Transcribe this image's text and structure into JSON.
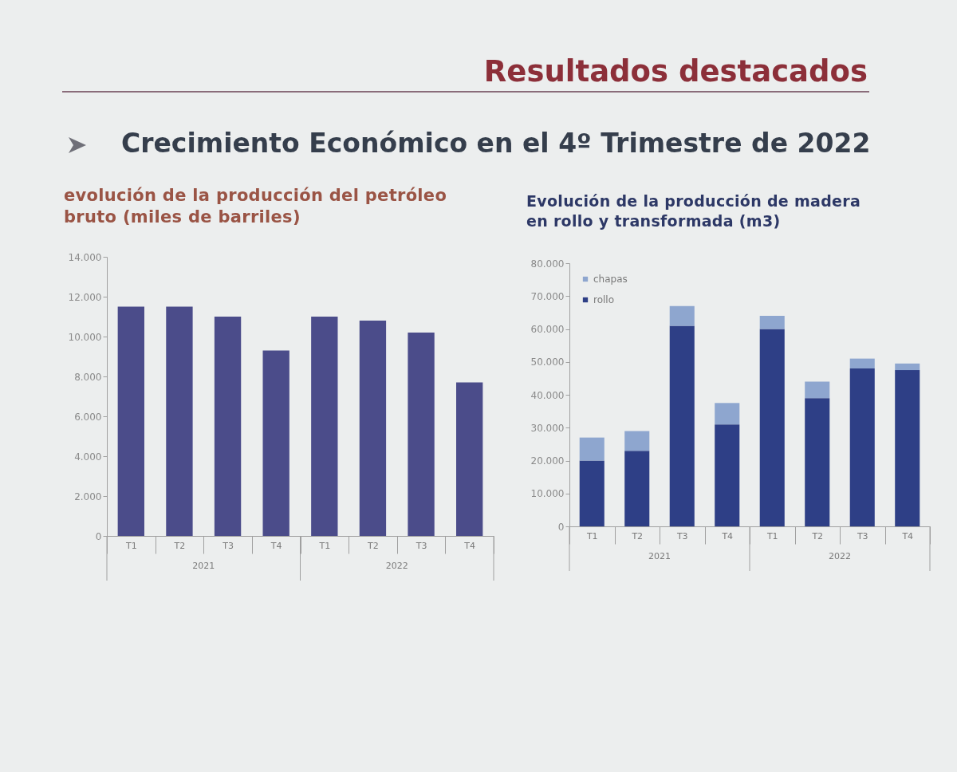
{
  "chart_data": [
    {
      "type": "other",
      "title": "Resultados destacados",
      "subtitle": "Crecimiento Económico en el 4º Trimestre de 2022"
    },
    {
      "type": "bar",
      "title": "evolución de la producción del petróleo bruto (miles de barriles)",
      "categories": [
        "T1",
        "T2",
        "T3",
        "T4",
        "T1",
        "T2",
        "T3",
        "T4"
      ],
      "values": [
        11500,
        11500,
        11000,
        9300,
        11000,
        10800,
        10200,
        7700
      ],
      "color": "#4b4c8a",
      "ylim": [
        0,
        14000
      ],
      "yticks": [
        {
          "value": 0,
          "label": "0"
        },
        {
          "value": 2000,
          "label": "2.000"
        },
        {
          "value": 4000,
          "label": "4.000"
        },
        {
          "value": 6000,
          "label": "6.000"
        },
        {
          "value": 8000,
          "label": "8.000"
        },
        {
          "value": 10000,
          "label": "10.000"
        },
        {
          "value": 12000,
          "label": "12.000"
        },
        {
          "value": 14000,
          "label": "14.000"
        }
      ],
      "annotations": [
        "2021",
        "2022"
      ]
    },
    {
      "type": "bar",
      "title": "Evolución de la producción de madera en rollo y transformada (m3)",
      "categories": [
        "T1",
        "T2",
        "T3",
        "T4",
        "T1",
        "T2",
        "T3",
        "T4"
      ],
      "series": [
        {
          "name": "rollo",
          "color": "#2e3f86",
          "values": [
            20000,
            23000,
            61000,
            31000,
            60000,
            39000,
            48000,
            47500
          ]
        },
        {
          "name": "chapas",
          "color": "#8ea6cf",
          "values": [
            7000,
            6000,
            6000,
            6500,
            4000,
            5000,
            3000,
            2000
          ]
        }
      ],
      "stacked": true,
      "legend": "top left",
      "ylim": [
        0,
        80000
      ],
      "yticks": [
        {
          "value": 0,
          "label": "0"
        },
        {
          "value": 10000,
          "label": "10.000"
        },
        {
          "value": 20000,
          "label": "20.000"
        },
        {
          "value": 30000,
          "label": "30.000"
        },
        {
          "value": 40000,
          "label": "40.000"
        },
        {
          "value": 50000,
          "label": "50.000"
        },
        {
          "value": 60000,
          "label": "60.000"
        },
        {
          "value": 70000,
          "label": "70.000"
        },
        {
          "value": 80000,
          "label": "80.000"
        }
      ],
      "annotations": [
        "2021",
        "2022"
      ]
    }
  ]
}
